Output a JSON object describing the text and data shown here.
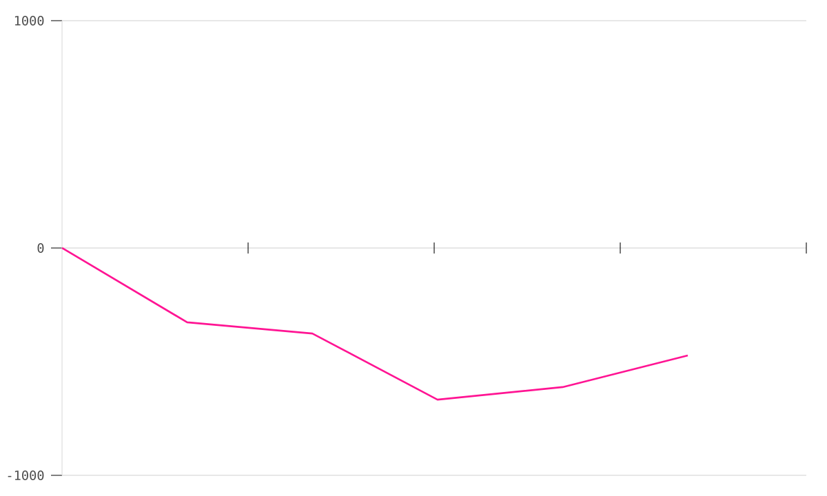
{
  "chart_data": {
    "type": "line",
    "categories": [
      null,
      null,
      null,
      null,
      null,
      null
    ],
    "series": [
      {
        "color": "#ff1493",
        "values": [
          0,
          -327,
          -376,
          -667,
          -612,
          -473
        ]
      }
    ],
    "ylim": [
      -1000,
      1000
    ],
    "yticks": [
      -1000,
      0,
      1000
    ],
    "tick_labels": "y",
    "grid": "y"
  }
}
